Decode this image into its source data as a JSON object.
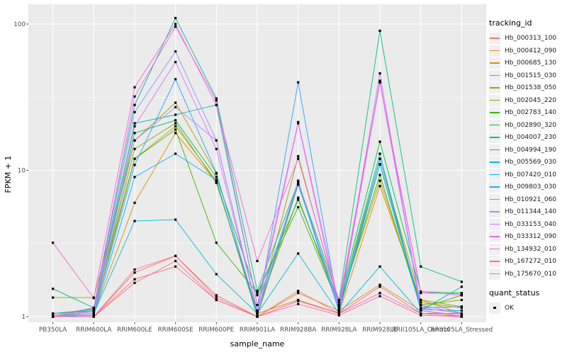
{
  "chart_data": {
    "type": "line",
    "x_type": "categorical",
    "y_scale": "log10",
    "xlabel": "sample_name",
    "ylabel": "FPKM + 1",
    "legend_title": "tracking_id",
    "legend2_title": "quant_status",
    "legend2_items": [
      "OK"
    ],
    "legend_position": "right",
    "grid": true,
    "panel_background": "#ebebeb",
    "gridline_color": "#ffffff",
    "marker": {
      "shape": "square",
      "color": "#000000"
    },
    "y_ticks": [
      1,
      10,
      100
    ],
    "y_minor_ticks": [
      3.162,
      31.62
    ],
    "categories": [
      "PB350LA",
      "RRIM600LA",
      "RRIM600LE",
      "RRIM600SE",
      "RRIM600PE",
      "RRIM901LA",
      "RRIM928BA",
      "RRIM928LA",
      "RRIM928LE",
      "RRII105LA_Control",
      "RRII105LA_Stressed"
    ],
    "series": [
      {
        "name": "Hb_000313_100",
        "color": "#F8766D",
        "values": [
          1.0,
          1.0,
          1.7,
          2.4,
          1.3,
          1.0,
          1.5,
          1.05,
          1.6,
          1.05,
          1.0
        ]
      },
      {
        "name": "Hb_000412_090",
        "color": "#EA8331",
        "values": [
          1.0,
          1.0,
          2.0,
          2.6,
          1.4,
          1.0,
          1.45,
          1.1,
          1.65,
          1.1,
          1.0
        ]
      },
      {
        "name": "Hb_000685_130",
        "color": "#D89000",
        "values": [
          1.0,
          1.05,
          6.0,
          18.0,
          8.3,
          1.05,
          1.3,
          1.05,
          7.8,
          1.3,
          1.05
        ]
      },
      {
        "name": "Hb_001515_030",
        "color": "#C09B00",
        "values": [
          1.0,
          1.05,
          12.0,
          20.0,
          8.5,
          1.0,
          8.0,
          1.2,
          8.5,
          1.25,
          1.15
        ]
      },
      {
        "name": "Hb_001538_050",
        "color": "#A3A500",
        "values": [
          1.35,
          1.35,
          16.0,
          29.0,
          9.5,
          1.05,
          12.5,
          1.2,
          12.0,
          1.3,
          1.17
        ]
      },
      {
        "name": "Hb_002045_220",
        "color": "#7CAE00",
        "values": [
          1.0,
          1.1,
          14.0,
          21.0,
          8.2,
          1.1,
          6.5,
          1.15,
          11.0,
          1.2,
          1.3
        ]
      },
      {
        "name": "Hb_002783_140",
        "color": "#39B600",
        "values": [
          1.0,
          1.14,
          12.0,
          19.0,
          3.2,
          1.45,
          5.6,
          1.18,
          9.3,
          1.14,
          1.4
        ]
      },
      {
        "name": "Hb_002890_320",
        "color": "#00BB4E",
        "values": [
          1.05,
          1.1,
          18.0,
          22.0,
          9.0,
          1.4,
          6.3,
          1.25,
          15.7,
          1.48,
          1.45
        ]
      },
      {
        "name": "Hb_004007_230",
        "color": "#00C087",
        "values": [
          1.55,
          1.15,
          28.0,
          110.0,
          31.0,
          1.5,
          8.3,
          1.3,
          90.0,
          2.2,
          1.73
        ]
      },
      {
        "name": "Hb_004994_190",
        "color": "#00C0B4",
        "values": [
          1.05,
          1.12,
          21.0,
          24.0,
          28.0,
          1.2,
          8.0,
          1.2,
          13.0,
          1.1,
          1.6
        ]
      },
      {
        "name": "Hb_005569_030",
        "color": "#00BCD8",
        "values": [
          1.0,
          1.05,
          4.5,
          4.6,
          1.95,
          1.05,
          2.7,
          1.05,
          2.2,
          1.05,
          1.05
        ]
      },
      {
        "name": "Hb_007420_010",
        "color": "#00B0F6",
        "values": [
          1.0,
          1.02,
          9.0,
          13.0,
          8.6,
          1.02,
          8.2,
          1.08,
          11.0,
          1.12,
          1.1
        ]
      },
      {
        "name": "Hb_009803_030",
        "color": "#29A3FF",
        "values": [
          1.0,
          1.05,
          10.9,
          42.0,
          9.6,
          1.05,
          40.0,
          1.1,
          12.0,
          1.15,
          1.17
        ]
      },
      {
        "name": "Hb_010921_060",
        "color": "#9590FF",
        "values": [
          1.0,
          1.08,
          25.0,
          65.0,
          16.0,
          1.1,
          8.4,
          1.15,
          41.0,
          1.2,
          1.05
        ]
      },
      {
        "name": "Hb_011344_140",
        "color": "#B983FF",
        "values": [
          1.0,
          1.05,
          16.0,
          27.0,
          16.0,
          1.08,
          8.5,
          1.12,
          46.0,
          1.1,
          1.02
        ]
      },
      {
        "name": "Hb_033153_040",
        "color": "#D575FE",
        "values": [
          1.0,
          1.1,
          20.0,
          55.0,
          14.0,
          1.1,
          21.0,
          1.1,
          40.0,
          1.15,
          1.05
        ]
      },
      {
        "name": "Hb_033312_090",
        "color": "#E76BF3",
        "values": [
          1.02,
          1.15,
          32.0,
          96.0,
          30.0,
          1.2,
          21.4,
          1.2,
          40.0,
          1.48,
          1.4
        ]
      },
      {
        "name": "Hb_134932_010",
        "color": "#F863DF",
        "values": [
          3.2,
          1.34,
          37.0,
          100.0,
          28.0,
          2.4,
          12.0,
          1.25,
          40.0,
          1.45,
          1.43
        ]
      },
      {
        "name": "Hb_167272_010",
        "color": "#FF62BC",
        "values": [
          1.0,
          1.0,
          2.1,
          2.6,
          1.35,
          1.0,
          1.28,
          1.05,
          1.45,
          1.05,
          1.0
        ]
      },
      {
        "name": "Hb_175670_010",
        "color": "#FF6A98",
        "values": [
          1.0,
          1.0,
          1.8,
          2.2,
          1.3,
          1.0,
          1.22,
          1.02,
          1.38,
          1.02,
          1.0
        ]
      }
    ]
  }
}
